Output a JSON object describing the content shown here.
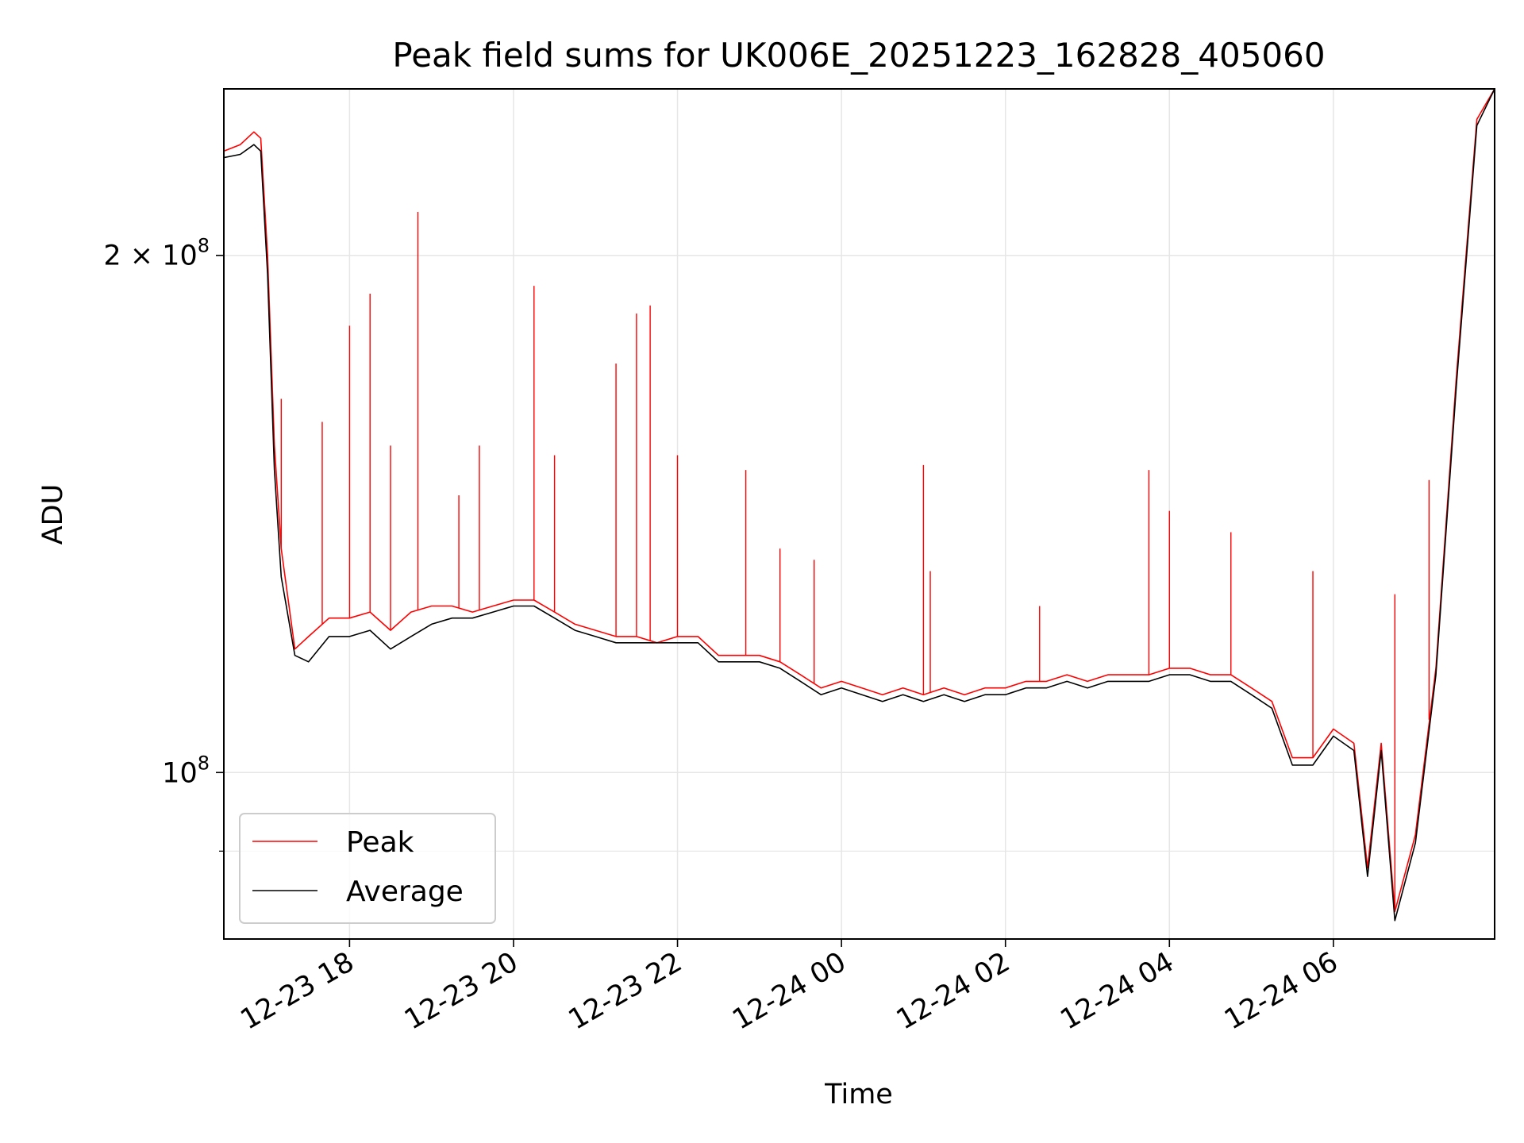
{
  "chart_data": {
    "type": "line",
    "title": "Peak field sums for UK006E_20251223_162828_405060",
    "xlabel": "Time",
    "ylabel": "ADU",
    "y_scale": "log",
    "ylim": [
      80000000,
      250000000
    ],
    "xlim": [
      "2025-12-23 16:28",
      "2025-12-24 07:58"
    ],
    "grid": true,
    "legend_position": "lower-left",
    "x_ticks": [
      {
        "value": "2025-12-23 18:00",
        "label": "12-23 18"
      },
      {
        "value": "2025-12-23 20:00",
        "label": "12-23 20"
      },
      {
        "value": "2025-12-23 22:00",
        "label": "12-23 22"
      },
      {
        "value": "2025-12-24 00:00",
        "label": "12-24 00"
      },
      {
        "value": "2025-12-24 02:00",
        "label": "12-24 02"
      },
      {
        "value": "2025-12-24 04:00",
        "label": "12-24 04"
      },
      {
        "value": "2025-12-24 06:00",
        "label": "12-24 06"
      }
    ],
    "y_ticks": [
      {
        "value": 200000000,
        "label_main": "2 × 10",
        "label_exp": "8"
      },
      {
        "value": 100000000,
        "label_main": "10",
        "label_exp": "8"
      }
    ],
    "y_minor_ticks": [
      90000000
    ],
    "series": [
      {
        "name": "Peak",
        "color": "#ff0000",
        "x": [
          "2025-12-23 16:28",
          "2025-12-23 16:40",
          "2025-12-23 16:50",
          "2025-12-23 16:55",
          "2025-12-23 17:00",
          "2025-12-23 17:05",
          "2025-12-23 17:10",
          "2025-12-23 17:20",
          "2025-12-23 17:30",
          "2025-12-23 17:45",
          "2025-12-23 18:00",
          "2025-12-23 18:15",
          "2025-12-23 18:30",
          "2025-12-23 18:45",
          "2025-12-23 19:00",
          "2025-12-23 19:15",
          "2025-12-23 19:30",
          "2025-12-23 19:45",
          "2025-12-23 20:00",
          "2025-12-23 20:15",
          "2025-12-23 20:30",
          "2025-12-23 20:45",
          "2025-12-23 21:00",
          "2025-12-23 21:15",
          "2025-12-23 21:30",
          "2025-12-23 21:45",
          "2025-12-23 22:00",
          "2025-12-23 22:15",
          "2025-12-23 22:30",
          "2025-12-23 22:45",
          "2025-12-23 23:00",
          "2025-12-23 23:15",
          "2025-12-23 23:30",
          "2025-12-23 23:45",
          "2025-12-24 00:00",
          "2025-12-24 00:15",
          "2025-12-24 00:30",
          "2025-12-24 00:45",
          "2025-12-24 01:00",
          "2025-12-24 01:15",
          "2025-12-24 01:30",
          "2025-12-24 01:45",
          "2025-12-24 02:00",
          "2025-12-24 02:15",
          "2025-12-24 02:30",
          "2025-12-24 02:45",
          "2025-12-24 03:00",
          "2025-12-24 03:15",
          "2025-12-24 03:30",
          "2025-12-24 03:45",
          "2025-12-24 04:00",
          "2025-12-24 04:15",
          "2025-12-24 04:30",
          "2025-12-24 04:45",
          "2025-12-24 05:00",
          "2025-12-24 05:15",
          "2025-12-24 05:30",
          "2025-12-24 05:45",
          "2025-12-24 06:00",
          "2025-12-24 06:15",
          "2025-12-24 06:25",
          "2025-12-24 06:35",
          "2025-12-24 06:45",
          "2025-12-24 07:00",
          "2025-12-24 07:15",
          "2025-12-24 07:30",
          "2025-12-24 07:45",
          "2025-12-24 07:58"
        ],
        "y": [
          230000000,
          232000000,
          236000000,
          234000000,
          200000000,
          155000000,
          135000000,
          118000000,
          120000000,
          123000000,
          123000000,
          124000000,
          121000000,
          124000000,
          125000000,
          125000000,
          124000000,
          125000000,
          126000000,
          126000000,
          124000000,
          122000000,
          121000000,
          120000000,
          120000000,
          119000000,
          120000000,
          120000000,
          117000000,
          117000000,
          117000000,
          116000000,
          114000000,
          112000000,
          113000000,
          112000000,
          111000000,
          112000000,
          111000000,
          112000000,
          111000000,
          112000000,
          112000000,
          113000000,
          113000000,
          114000000,
          113000000,
          114000000,
          114000000,
          114000000,
          115000000,
          115000000,
          114000000,
          114000000,
          112000000,
          110000000,
          102000000,
          102000000,
          106000000,
          104000000,
          88000000,
          104000000,
          83000000,
          92000000,
          115000000,
          170000000,
          240000000,
          250000000
        ],
        "spikes": [
          {
            "x": "2025-12-23 17:10",
            "y": 165000000
          },
          {
            "x": "2025-12-23 17:40",
            "y": 160000000
          },
          {
            "x": "2025-12-23 18:00",
            "y": 182000000
          },
          {
            "x": "2025-12-23 18:15",
            "y": 190000000
          },
          {
            "x": "2025-12-23 18:30",
            "y": 155000000
          },
          {
            "x": "2025-12-23 18:50",
            "y": 212000000
          },
          {
            "x": "2025-12-23 19:20",
            "y": 145000000
          },
          {
            "x": "2025-12-23 19:35",
            "y": 155000000
          },
          {
            "x": "2025-12-23 20:15",
            "y": 192000000
          },
          {
            "x": "2025-12-23 20:30",
            "y": 153000000
          },
          {
            "x": "2025-12-23 21:15",
            "y": 173000000
          },
          {
            "x": "2025-12-23 21:30",
            "y": 185000000
          },
          {
            "x": "2025-12-23 21:40",
            "y": 187000000
          },
          {
            "x": "2025-12-23 22:00",
            "y": 153000000
          },
          {
            "x": "2025-12-23 22:50",
            "y": 150000000
          },
          {
            "x": "2025-12-23 23:15",
            "y": 135000000
          },
          {
            "x": "2025-12-23 23:40",
            "y": 133000000
          },
          {
            "x": "2025-12-24 01:00",
            "y": 151000000
          },
          {
            "x": "2025-12-24 01:05",
            "y": 131000000
          },
          {
            "x": "2025-12-24 02:25",
            "y": 125000000
          },
          {
            "x": "2025-12-24 03:45",
            "y": 150000000
          },
          {
            "x": "2025-12-24 04:00",
            "y": 142000000
          },
          {
            "x": "2025-12-24 04:45",
            "y": 138000000
          },
          {
            "x": "2025-12-24 05:45",
            "y": 131000000
          },
          {
            "x": "2025-12-24 06:45",
            "y": 127000000
          },
          {
            "x": "2025-12-24 07:10",
            "y": 148000000
          }
        ]
      },
      {
        "name": "Average",
        "color": "#000000",
        "x": [
          "2025-12-23 16:28",
          "2025-12-23 16:40",
          "2025-12-23 16:50",
          "2025-12-23 16:55",
          "2025-12-23 17:00",
          "2025-12-23 17:05",
          "2025-12-23 17:10",
          "2025-12-23 17:20",
          "2025-12-23 17:30",
          "2025-12-23 17:45",
          "2025-12-23 18:00",
          "2025-12-23 18:15",
          "2025-12-23 18:30",
          "2025-12-23 18:45",
          "2025-12-23 19:00",
          "2025-12-23 19:15",
          "2025-12-23 19:30",
          "2025-12-23 19:45",
          "2025-12-23 20:00",
          "2025-12-23 20:15",
          "2025-12-23 20:30",
          "2025-12-23 20:45",
          "2025-12-23 21:00",
          "2025-12-23 21:15",
          "2025-12-23 21:30",
          "2025-12-23 21:45",
          "2025-12-23 22:00",
          "2025-12-23 22:15",
          "2025-12-23 22:30",
          "2025-12-23 22:45",
          "2025-12-23 23:00",
          "2025-12-23 23:15",
          "2025-12-23 23:30",
          "2025-12-23 23:45",
          "2025-12-24 00:00",
          "2025-12-24 00:15",
          "2025-12-24 00:30",
          "2025-12-24 00:45",
          "2025-12-24 01:00",
          "2025-12-24 01:15",
          "2025-12-24 01:30",
          "2025-12-24 01:45",
          "2025-12-24 02:00",
          "2025-12-24 02:15",
          "2025-12-24 02:30",
          "2025-12-24 02:45",
          "2025-12-24 03:00",
          "2025-12-24 03:15",
          "2025-12-24 03:30",
          "2025-12-24 03:45",
          "2025-12-24 04:00",
          "2025-12-24 04:15",
          "2025-12-24 04:30",
          "2025-12-24 04:45",
          "2025-12-24 05:00",
          "2025-12-24 05:15",
          "2025-12-24 05:30",
          "2025-12-24 05:45",
          "2025-12-24 06:00",
          "2025-12-24 06:15",
          "2025-12-24 06:25",
          "2025-12-24 06:35",
          "2025-12-24 06:45",
          "2025-12-24 07:00",
          "2025-12-24 07:15",
          "2025-12-24 07:30",
          "2025-12-24 07:45",
          "2025-12-24 07:58"
        ],
        "y": [
          228000000,
          229000000,
          232000000,
          230000000,
          195000000,
          150000000,
          130000000,
          117000000,
          116000000,
          120000000,
          120000000,
          121000000,
          118000000,
          120000000,
          122000000,
          123000000,
          123000000,
          124000000,
          125000000,
          125000000,
          123000000,
          121000000,
          120000000,
          119000000,
          119000000,
          119000000,
          119000000,
          119000000,
          116000000,
          116000000,
          116000000,
          115000000,
          113000000,
          111000000,
          112000000,
          111000000,
          110000000,
          111000000,
          110000000,
          111000000,
          110000000,
          111000000,
          111000000,
          112000000,
          112000000,
          113000000,
          112000000,
          113000000,
          113000000,
          113000000,
          114000000,
          114000000,
          113000000,
          113000000,
          111000000,
          109000000,
          101000000,
          101000000,
          105000000,
          103000000,
          87000000,
          103000000,
          82000000,
          91000000,
          114000000,
          168000000,
          238000000,
          250000000
        ]
      }
    ]
  }
}
